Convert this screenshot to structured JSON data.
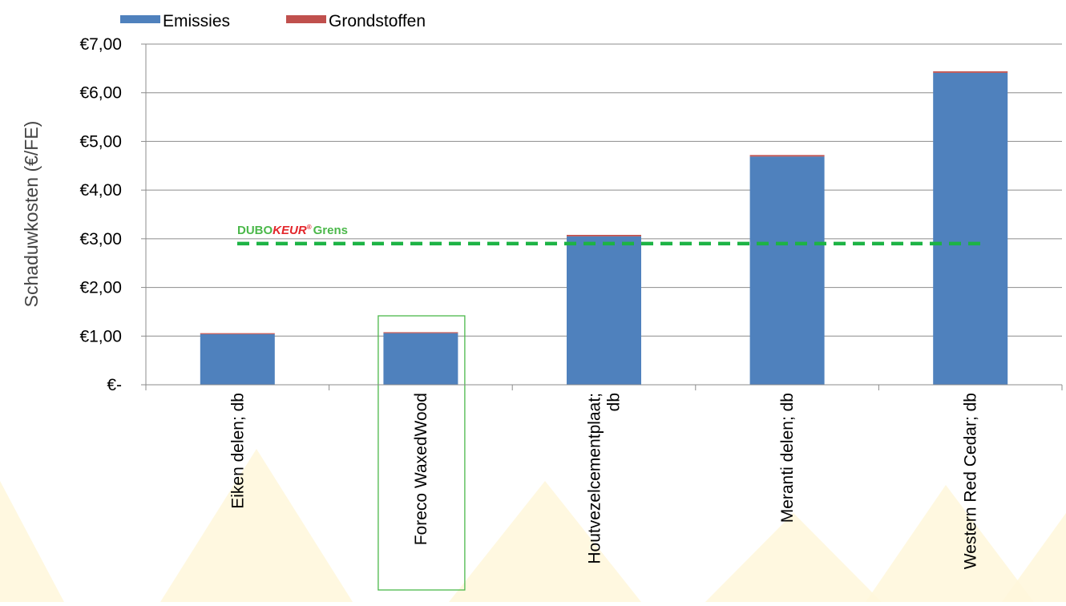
{
  "chart_data": {
    "type": "bar",
    "stacked": true,
    "categories": [
      "Eiken delen; db",
      "Foreco WaxedWood",
      "Houtvezelcementplaat; db",
      "Meranti delen; db",
      "Western Red Cedar; db"
    ],
    "category_lines": [
      [
        "Eiken delen; db"
      ],
      [
        "Foreco WaxedWood"
      ],
      [
        "Houtvezelcementplaat;",
        "db"
      ],
      [
        "Meranti delen; db"
      ],
      [
        "Western Red Cedar; db"
      ]
    ],
    "series": [
      {
        "name": "Emissies",
        "color": "#4F81BD",
        "values": [
          1.04,
          1.06,
          3.05,
          4.69,
          6.41
        ]
      },
      {
        "name": "Grondstoffen",
        "color": "#C0504D",
        "values": [
          0.02,
          0.02,
          0.03,
          0.03,
          0.03
        ]
      }
    ],
    "ylabel": "Schaduwkosten (€/FE)",
    "ylim": [
      0,
      7
    ],
    "yticks": [
      0,
      1,
      2,
      3,
      4,
      5,
      6,
      7
    ],
    "ytick_labels": [
      "€-",
      "€1,00",
      "€2,00",
      "€3,00",
      "€4,00",
      "€5,00",
      "€6,00",
      "€7,00"
    ],
    "grid": true,
    "legend_position": "top-left",
    "reference_line": {
      "value": 2.9,
      "color": "#1DB345",
      "style": "dashed",
      "label_parts": [
        {
          "text": "DUBO",
          "color": "#4BB84A"
        },
        {
          "text": "KEUR",
          "color": "#E3262B"
        },
        {
          "text": "®",
          "color": "#E3262B"
        },
        {
          "text": "Grens",
          "color": "#4BB84A"
        }
      ]
    },
    "highlighted_category": "Foreco WaxedWood",
    "highlight_color": "#4BB84A"
  }
}
